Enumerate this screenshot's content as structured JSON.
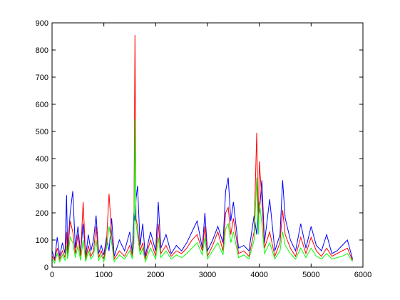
{
  "chart_data": {
    "type": "line",
    "x": [
      0,
      50,
      100,
      150,
      200,
      250,
      280,
      300,
      350,
      400,
      450,
      500,
      550,
      600,
      650,
      700,
      750,
      800,
      850,
      900,
      950,
      1000,
      1050,
      1100,
      1150,
      1200,
      1300,
      1400,
      1500,
      1550,
      1580,
      1600,
      1620,
      1650,
      1700,
      1750,
      1800,
      1900,
      2000,
      2050,
      2100,
      2200,
      2300,
      2400,
      2500,
      2600,
      2700,
      2800,
      2900,
      2950,
      3000,
      3100,
      3200,
      3300,
      3350,
      3400,
      3450,
      3500,
      3600,
      3700,
      3800,
      3900,
      3950,
      3980,
      4000,
      4050,
      4100,
      4200,
      4300,
      4400,
      4450,
      4500,
      4600,
      4700,
      4800,
      4900,
      5000,
      5100,
      5200,
      5300,
      5400,
      5500,
      5600,
      5700,
      5800
    ],
    "series": [
      {
        "color": "#0000ff",
        "values": [
          60,
          30,
          110,
          40,
          90,
          50,
          265,
          60,
          200,
          280,
          70,
          150,
          50,
          160,
          40,
          120,
          60,
          100,
          190,
          50,
          80,
          45,
          110,
          60,
          180,
          40,
          100,
          60,
          130,
          50,
          200,
          170,
          250,
          300,
          80,
          160,
          40,
          130,
          60,
          240,
          70,
          120,
          50,
          80,
          60,
          90,
          130,
          170,
          70,
          200,
          60,
          100,
          150,
          90,
          280,
          330,
          170,
          240,
          70,
          80,
          60,
          190,
          120,
          230,
          200,
          320,
          90,
          250,
          60,
          120,
          320,
          180,
          100,
          60,
          160,
          70,
          150,
          80,
          60,
          120,
          50,
          60,
          80,
          100,
          30
        ]
      },
      {
        "color": "#ff0000",
        "values": [
          40,
          25,
          70,
          30,
          60,
          35,
          130,
          40,
          170,
          130,
          50,
          120,
          40,
          240,
          30,
          80,
          40,
          60,
          150,
          35,
          60,
          30,
          90,
          270,
          120,
          30,
          60,
          40,
          80,
          40,
          120,
          855,
          180,
          150,
          60,
          90,
          30,
          100,
          40,
          160,
          50,
          80,
          40,
          60,
          50,
          70,
          100,
          120,
          60,
          150,
          40,
          80,
          130,
          60,
          200,
          220,
          120,
          180,
          50,
          60,
          40,
          130,
          495,
          150,
          390,
          250,
          70,
          130,
          40,
          90,
          210,
          120,
          70,
          40,
          110,
          50,
          110,
          60,
          40,
          70,
          40,
          50,
          60,
          70,
          25
        ]
      },
      {
        "color": "#00ff00",
        "values": [
          30,
          15,
          50,
          20,
          45,
          25,
          80,
          30,
          110,
          90,
          35,
          80,
          25,
          100,
          20,
          60,
          30,
          45,
          100,
          25,
          45,
          20,
          70,
          150,
          90,
          20,
          45,
          30,
          60,
          30,
          90,
          545,
          160,
          120,
          45,
          70,
          20,
          70,
          30,
          110,
          35,
          60,
          30,
          45,
          35,
          50,
          70,
          90,
          45,
          110,
          30,
          60,
          90,
          45,
          140,
          160,
          90,
          130,
          35,
          45,
          30,
          100,
          330,
          120,
          240,
          160,
          50,
          90,
          30,
          60,
          130,
          80,
          50,
          30,
          70,
          35,
          70,
          40,
          30,
          50,
          30,
          35,
          40,
          50,
          20
        ]
      }
    ],
    "xlim": [
      0,
      6000
    ],
    "xticks": [
      0,
      1000,
      2000,
      3000,
      4000,
      5000,
      6000
    ],
    "ylim": [
      0,
      900
    ],
    "yticks": [
      0,
      100,
      200,
      300,
      400,
      500,
      600,
      700,
      800,
      900
    ]
  }
}
